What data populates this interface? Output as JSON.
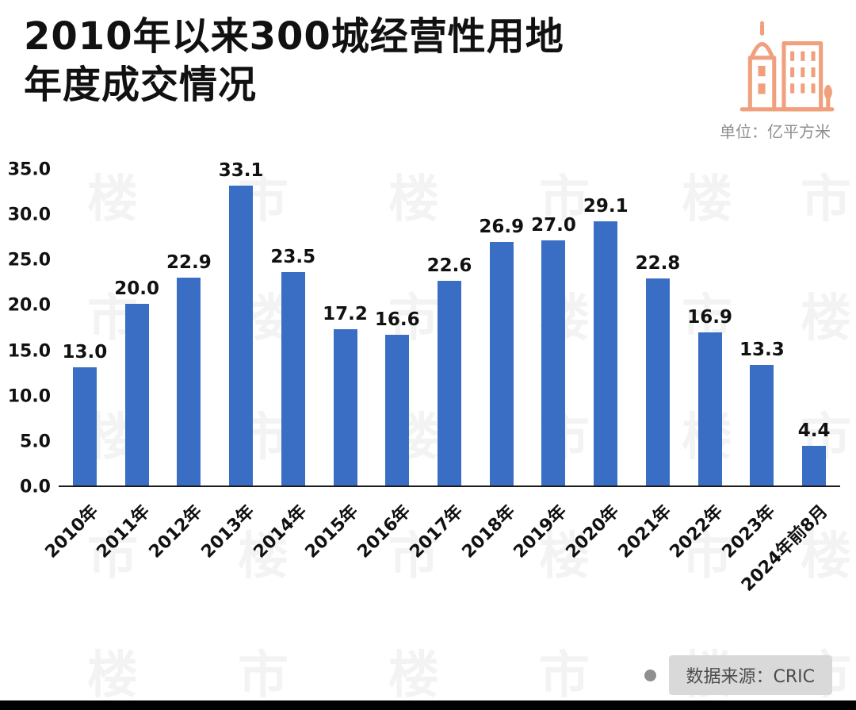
{
  "header": {
    "title_line1": "2010年以来300城经营性用地",
    "title_line2": "年度成交情况",
    "unit_label": "单位：亿平方米"
  },
  "chart_data": {
    "type": "bar",
    "title": "2010年以来300城经营性用地年度成交情况",
    "categories": [
      "2010年",
      "2011年",
      "2012年",
      "2013年",
      "2014年",
      "2015年",
      "2016年",
      "2017年",
      "2018年",
      "2019年",
      "2020年",
      "2021年",
      "2022年",
      "2023年",
      "2024年前8月"
    ],
    "values": [
      13.0,
      20.0,
      22.9,
      33.1,
      23.5,
      17.2,
      16.6,
      22.6,
      26.9,
      27.0,
      29.1,
      22.8,
      16.9,
      13.3,
      4.4
    ],
    "xlabel": "",
    "ylabel": "亿平方米",
    "ylim": [
      0,
      35
    ],
    "ytick_step": 5,
    "yticks": [
      "35.0",
      "30.0",
      "25.0",
      "20.0",
      "15.0",
      "10.0",
      "5.0",
      "0.0"
    ],
    "grid": false,
    "legend": "none",
    "bar_color": "#3a6ec4",
    "value_labels": "on"
  },
  "footer": {
    "source_label": "数据来源：CRIC"
  },
  "watermark": {
    "chars": [
      "楼",
      "市"
    ]
  },
  "colors": {
    "bar": "#3a6ec4",
    "icon_orange": "#f0a07c",
    "title_text": "#111111",
    "unit_text": "#8f8f8f",
    "footer_pill_bg": "#d9d9d9",
    "footer_text": "#4d4d4d",
    "bottom_bar": "#000000"
  }
}
